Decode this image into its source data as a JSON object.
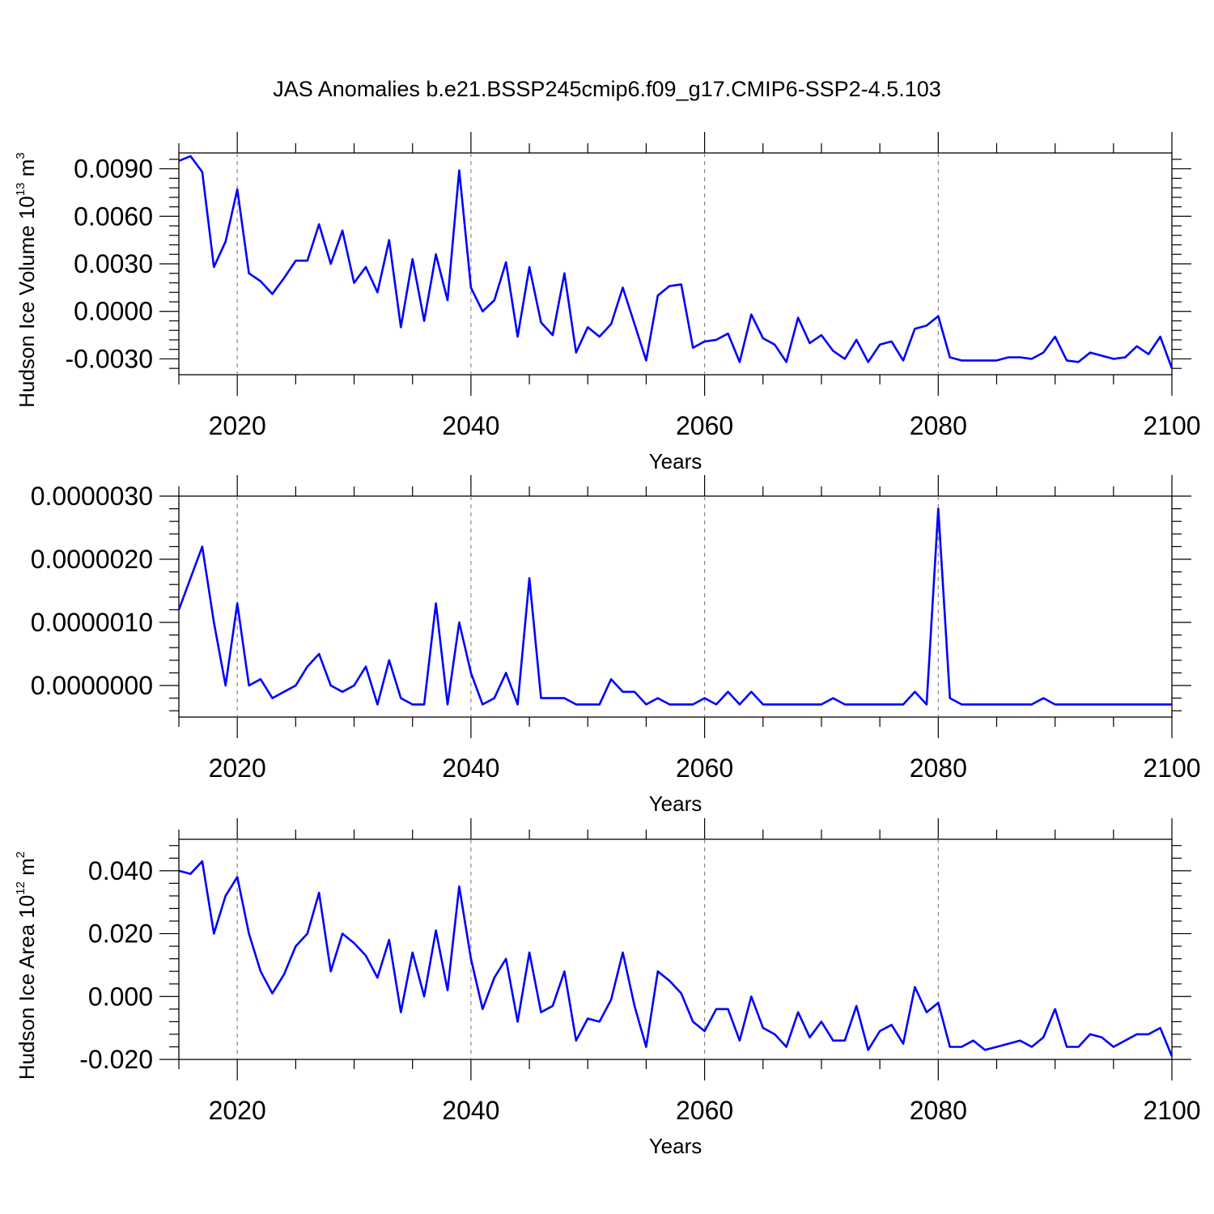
{
  "title": "JAS Anomalies b.e21.BSSP245cmip6.f09_g17.CMIP6-SSP2-4.5.103",
  "series_color": "#0000ff",
  "chart_data": [
    {
      "type": "line",
      "ylabel": "Hudson Ice Volume 10",
      "ylabel_exp": "13",
      "ylabel_unit": " m",
      "ylabel_unit_exp": "3",
      "xlabel": "Years",
      "xlim": [
        2015,
        2100
      ],
      "ylim": [
        -0.004,
        0.01
      ],
      "yticks": [
        -0.003,
        0.0,
        0.003,
        0.006,
        0.009
      ],
      "ytick_labels": [
        "-0.0030",
        "0.0000",
        "0.0030",
        "0.0060",
        "0.0090"
      ],
      "xticks": [
        2020,
        2040,
        2060,
        2080,
        2100
      ],
      "xtick_labels": [
        "2020",
        "2040",
        "2060",
        "2080",
        "2100"
      ],
      "grid": "dashed vertical at major x ticks",
      "x_start": 2015,
      "values": [
        0.0095,
        0.0098,
        0.0088,
        0.0028,
        0.0044,
        0.0077,
        0.0024,
        0.0019,
        0.0011,
        0.0021,
        0.0032,
        0.0032,
        0.0055,
        0.003,
        0.0051,
        0.0018,
        0.0028,
        0.0012,
        0.0045,
        -0.001,
        0.0033,
        -0.0006,
        0.0036,
        0.0007,
        0.0089,
        0.0015,
        0.0,
        0.0007,
        0.0031,
        -0.0016,
        0.0028,
        -0.0007,
        -0.0015,
        0.0024,
        -0.0026,
        -0.001,
        -0.0016,
        -0.0008,
        0.0015,
        -0.0008,
        -0.0031,
        0.001,
        0.0016,
        0.0017,
        -0.0023,
        -0.0019,
        -0.0018,
        -0.0014,
        -0.0032,
        -0.0002,
        -0.0017,
        -0.0021,
        -0.0032,
        -0.0004,
        -0.002,
        -0.0015,
        -0.0025,
        -0.003,
        -0.0018,
        -0.0032,
        -0.0021,
        -0.0019,
        -0.0031,
        -0.0011,
        -0.0009,
        -0.0003,
        -0.0029,
        -0.0031,
        -0.0031,
        -0.0031,
        -0.0031,
        -0.0029,
        -0.0029,
        -0.003,
        -0.0026,
        -0.0016,
        -0.0031,
        -0.0032,
        -0.0026,
        -0.0028,
        -0.003,
        -0.0029,
        -0.0022,
        -0.0027,
        -0.0016,
        -0.0036
      ]
    },
    {
      "type": "line",
      "ylabel": "",
      "xlabel": "Years",
      "xlim": [
        2015,
        2100
      ],
      "ylim": [
        -5e-07,
        3e-06
      ],
      "yticks": [
        0.0,
        1e-06,
        2e-06,
        3e-06
      ],
      "ytick_labels": [
        "0.0000000",
        "0.0000010",
        "0.0000020",
        "0.0000030"
      ],
      "xticks": [
        2020,
        2040,
        2060,
        2080,
        2100
      ],
      "xtick_labels": [
        "2020",
        "2040",
        "2060",
        "2080",
        "2100"
      ],
      "grid": "dashed vertical at major x ticks",
      "x_start": 2015,
      "values": [
        1.2e-06,
        1.7e-06,
        2.2e-06,
        1e-06,
        -0.0,
        1.3e-06,
        -0.0,
        1e-07,
        -2e-07,
        -1e-07,
        0.0,
        3e-07,
        5e-07,
        -0.0,
        -1e-07,
        0.0,
        3e-07,
        -3e-07,
        4e-07,
        -2e-07,
        -3e-07,
        -3e-07,
        1.3e-06,
        -3e-07,
        1e-06,
        2e-07,
        -3e-07,
        -2e-07,
        2e-07,
        -3e-07,
        1.7e-06,
        -2e-07,
        -2e-07,
        -2e-07,
        -3e-07,
        -3e-07,
        -3e-07,
        1e-07,
        -1e-07,
        -1e-07,
        -3e-07,
        -2e-07,
        -3e-07,
        -3e-07,
        -3e-07,
        -2e-07,
        -3e-07,
        -1e-07,
        -3e-07,
        -1e-07,
        -3e-07,
        -3e-07,
        -3e-07,
        -3e-07,
        -3e-07,
        -3e-07,
        -2e-07,
        -3e-07,
        -3e-07,
        -3e-07,
        -3e-07,
        -3e-07,
        -3e-07,
        -1e-07,
        -3e-07,
        2.8e-06,
        -2e-07,
        -3e-07,
        -3e-07,
        -3e-07,
        -3e-07,
        -3e-07,
        -3e-07,
        -3e-07,
        -2e-07,
        -3e-07,
        -3e-07,
        -3e-07,
        -3e-07,
        -3e-07,
        -3e-07,
        -3e-07,
        -3e-07,
        -3e-07,
        -3e-07,
        -3e-07
      ]
    },
    {
      "type": "line",
      "ylabel": "Hudson Ice Area 10",
      "ylabel_exp": "12",
      "ylabel_unit": " m",
      "ylabel_unit_exp": "2",
      "xlabel": "Years",
      "xlim": [
        2015,
        2100
      ],
      "ylim": [
        -0.02,
        0.05
      ],
      "yticks": [
        -0.02,
        0.0,
        0.02,
        0.04
      ],
      "ytick_labels": [
        "-0.020",
        "0.000",
        "0.020",
        "0.040"
      ],
      "xticks": [
        2020,
        2040,
        2060,
        2080,
        2100
      ],
      "xtick_labels": [
        "2020",
        "2040",
        "2060",
        "2080",
        "2100"
      ],
      "grid": "dashed vertical at major x ticks",
      "x_start": 2015,
      "values": [
        0.04,
        0.039,
        0.043,
        0.02,
        0.032,
        0.038,
        0.02,
        0.008,
        0.001,
        0.007,
        0.016,
        0.02,
        0.033,
        0.008,
        0.02,
        0.017,
        0.013,
        0.006,
        0.018,
        -0.005,
        0.014,
        -0.0,
        0.021,
        0.002,
        0.035,
        0.012,
        -0.004,
        0.006,
        0.012,
        -0.008,
        0.014,
        -0.005,
        -0.003,
        0.008,
        -0.014,
        -0.007,
        -0.008,
        -0.001,
        0.014,
        -0.003,
        -0.016,
        0.008,
        0.005,
        0.001,
        -0.008,
        -0.011,
        -0.004,
        -0.004,
        -0.014,
        0.0,
        -0.01,
        -0.012,
        -0.016,
        -0.005,
        -0.013,
        -0.008,
        -0.014,
        -0.014,
        -0.003,
        -0.017,
        -0.011,
        -0.009,
        -0.015,
        0.003,
        -0.005,
        -0.002,
        -0.016,
        -0.016,
        -0.014,
        -0.017,
        -0.016,
        -0.015,
        -0.014,
        -0.016,
        -0.013,
        -0.004,
        -0.016,
        -0.016,
        -0.012,
        -0.013,
        -0.016,
        -0.014,
        -0.012,
        -0.012,
        -0.01,
        -0.019
      ]
    }
  ]
}
